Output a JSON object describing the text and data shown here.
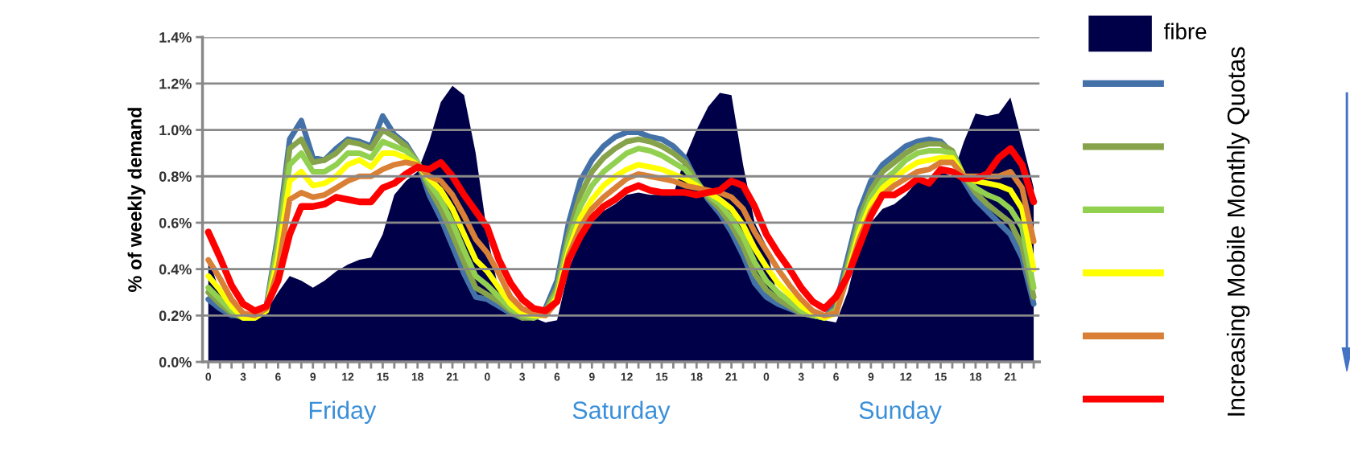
{
  "chart_data": {
    "type": "line",
    "ylabel": "% of weekly demand",
    "legend_title": "Increasing Mobile Monthly Quotas",
    "legend": "right",
    "grid": "y",
    "marker": "none",
    "line_style": "solid",
    "ylim": [
      0,
      1.4
    ],
    "yticks": [
      {
        "value": 0,
        "label": "0.0%"
      },
      {
        "value": 0.2,
        "label": "0.2%"
      },
      {
        "value": 0.4,
        "label": "0.4%"
      },
      {
        "value": 0.6,
        "label": "0.6%"
      },
      {
        "value": 0.8,
        "label": "0.8%"
      },
      {
        "value": 1.0,
        "label": "1.0%"
      },
      {
        "value": 1.2,
        "label": "1.2%"
      },
      {
        "value": 1.4,
        "label": "1.4%"
      }
    ],
    "annotations": [
      "Friday",
      "Saturday",
      "Sunday"
    ],
    "categories": [
      "0",
      null,
      null,
      "3",
      null,
      null,
      "6",
      null,
      null,
      "9",
      null,
      null,
      "12",
      null,
      null,
      "15",
      null,
      null,
      "18",
      null,
      null,
      "21",
      null,
      null,
      "0",
      null,
      null,
      "3",
      null,
      null,
      "6",
      null,
      null,
      "9",
      null,
      null,
      "12",
      null,
      null,
      "15",
      null,
      null,
      "18",
      null,
      null,
      "21",
      null,
      null,
      "0",
      null,
      null,
      "3",
      null,
      null,
      "6",
      null,
      null,
      "9",
      null,
      null,
      "12",
      null,
      null,
      "15",
      null,
      null,
      "18",
      null,
      null,
      "21",
      null,
      null
    ],
    "series": [
      {
        "name": "fibre",
        "type": "area",
        "color": "#000048",
        "values": [
          0.45,
          0.3,
          0.2,
          0.19,
          0.2,
          0.22,
          0.3,
          0.37,
          0.35,
          0.32,
          0.35,
          0.39,
          0.42,
          0.44,
          0.45,
          0.55,
          0.72,
          0.78,
          0.82,
          0.95,
          1.12,
          1.19,
          1.15,
          0.9,
          0.55,
          0.3,
          0.22,
          0.2,
          0.19,
          0.17,
          0.18,
          0.4,
          0.52,
          0.6,
          0.65,
          0.68,
          0.72,
          0.73,
          0.72,
          0.72,
          0.72,
          0.88,
          1.0,
          1.1,
          1.16,
          1.15,
          0.85,
          0.6,
          0.5,
          0.27,
          0.24,
          0.22,
          0.2,
          0.18,
          0.17,
          0.3,
          0.5,
          0.6,
          0.66,
          0.68,
          0.72,
          0.78,
          0.77,
          0.82,
          0.8,
          0.95,
          1.07,
          1.06,
          1.07,
          1.14,
          0.95,
          0.75
        ]
      },
      {
        "color": "#4472a8",
        "values": [
          0.27,
          0.23,
          0.2,
          0.2,
          0.2,
          0.24,
          0.55,
          0.96,
          1.04,
          0.88,
          0.87,
          0.92,
          0.96,
          0.95,
          0.93,
          1.06,
          0.98,
          0.94,
          0.86,
          0.72,
          0.62,
          0.5,
          0.38,
          0.28,
          0.27,
          0.24,
          0.21,
          0.19,
          0.2,
          0.23,
          0.35,
          0.6,
          0.78,
          0.87,
          0.93,
          0.97,
          0.99,
          0.99,
          0.97,
          0.96,
          0.93,
          0.88,
          0.78,
          0.7,
          0.64,
          0.56,
          0.46,
          0.34,
          0.28,
          0.25,
          0.23,
          0.21,
          0.2,
          0.19,
          0.25,
          0.45,
          0.65,
          0.78,
          0.85,
          0.89,
          0.93,
          0.95,
          0.96,
          0.95,
          0.9,
          0.78,
          0.7,
          0.65,
          0.6,
          0.55,
          0.45,
          0.25
        ]
      },
      {
        "color": "#86a24a",
        "values": [
          0.3,
          0.25,
          0.21,
          0.19,
          0.19,
          0.23,
          0.53,
          0.92,
          0.96,
          0.86,
          0.87,
          0.9,
          0.95,
          0.94,
          0.92,
          1.0,
          0.97,
          0.93,
          0.86,
          0.75,
          0.66,
          0.55,
          0.43,
          0.32,
          0.29,
          0.26,
          0.22,
          0.19,
          0.19,
          0.22,
          0.32,
          0.55,
          0.72,
          0.82,
          0.88,
          0.92,
          0.95,
          0.96,
          0.95,
          0.93,
          0.9,
          0.86,
          0.78,
          0.71,
          0.66,
          0.59,
          0.5,
          0.38,
          0.31,
          0.27,
          0.24,
          0.21,
          0.2,
          0.19,
          0.23,
          0.42,
          0.62,
          0.74,
          0.82,
          0.86,
          0.9,
          0.93,
          0.94,
          0.94,
          0.91,
          0.8,
          0.73,
          0.68,
          0.64,
          0.6,
          0.5,
          0.28
        ]
      },
      {
        "color": "#92d050",
        "values": [
          0.32,
          0.27,
          0.22,
          0.19,
          0.19,
          0.23,
          0.5,
          0.85,
          0.9,
          0.82,
          0.82,
          0.85,
          0.9,
          0.9,
          0.88,
          0.95,
          0.93,
          0.91,
          0.86,
          0.77,
          0.7,
          0.6,
          0.48,
          0.37,
          0.33,
          0.28,
          0.23,
          0.2,
          0.19,
          0.21,
          0.3,
          0.52,
          0.67,
          0.76,
          0.82,
          0.86,
          0.9,
          0.92,
          0.91,
          0.89,
          0.86,
          0.83,
          0.77,
          0.72,
          0.68,
          0.62,
          0.54,
          0.43,
          0.35,
          0.3,
          0.26,
          0.22,
          0.2,
          0.19,
          0.22,
          0.4,
          0.59,
          0.71,
          0.78,
          0.82,
          0.87,
          0.9,
          0.91,
          0.91,
          0.9,
          0.8,
          0.75,
          0.72,
          0.7,
          0.66,
          0.58,
          0.32
        ]
      },
      {
        "color": "#ffff00",
        "values": [
          0.37,
          0.31,
          0.24,
          0.19,
          0.19,
          0.22,
          0.45,
          0.78,
          0.82,
          0.76,
          0.77,
          0.8,
          0.85,
          0.87,
          0.84,
          0.9,
          0.9,
          0.88,
          0.85,
          0.79,
          0.74,
          0.66,
          0.55,
          0.44,
          0.39,
          0.32,
          0.25,
          0.21,
          0.2,
          0.2,
          0.28,
          0.48,
          0.62,
          0.7,
          0.76,
          0.8,
          0.83,
          0.85,
          0.84,
          0.83,
          0.81,
          0.79,
          0.76,
          0.73,
          0.7,
          0.66,
          0.59,
          0.49,
          0.41,
          0.34,
          0.29,
          0.24,
          0.21,
          0.19,
          0.21,
          0.38,
          0.56,
          0.68,
          0.75,
          0.79,
          0.83,
          0.86,
          0.87,
          0.88,
          0.88,
          0.8,
          0.78,
          0.77,
          0.76,
          0.74,
          0.66,
          0.4
        ]
      },
      {
        "color": "#d98036",
        "values": [
          0.44,
          0.36,
          0.27,
          0.21,
          0.2,
          0.23,
          0.4,
          0.7,
          0.73,
          0.71,
          0.72,
          0.75,
          0.78,
          0.8,
          0.8,
          0.83,
          0.85,
          0.86,
          0.85,
          0.8,
          0.78,
          0.72,
          0.63,
          0.53,
          0.47,
          0.38,
          0.28,
          0.23,
          0.21,
          0.2,
          0.26,
          0.46,
          0.58,
          0.66,
          0.71,
          0.75,
          0.79,
          0.81,
          0.8,
          0.79,
          0.78,
          0.76,
          0.75,
          0.74,
          0.73,
          0.71,
          0.66,
          0.56,
          0.48,
          0.4,
          0.33,
          0.27,
          0.22,
          0.2,
          0.21,
          0.37,
          0.53,
          0.65,
          0.72,
          0.76,
          0.79,
          0.82,
          0.83,
          0.86,
          0.86,
          0.8,
          0.8,
          0.8,
          0.8,
          0.82,
          0.75,
          0.52
        ]
      },
      {
        "color": "#ff0000",
        "values": [
          0.56,
          0.45,
          0.33,
          0.25,
          0.22,
          0.24,
          0.35,
          0.55,
          0.67,
          0.67,
          0.68,
          0.71,
          0.7,
          0.69,
          0.69,
          0.75,
          0.77,
          0.81,
          0.84,
          0.83,
          0.86,
          0.8,
          0.72,
          0.65,
          0.58,
          0.44,
          0.34,
          0.27,
          0.23,
          0.22,
          0.26,
          0.44,
          0.54,
          0.62,
          0.67,
          0.7,
          0.74,
          0.76,
          0.74,
          0.73,
          0.73,
          0.73,
          0.72,
          0.73,
          0.74,
          0.78,
          0.76,
          0.67,
          0.55,
          0.47,
          0.4,
          0.32,
          0.26,
          0.23,
          0.28,
          0.37,
          0.5,
          0.63,
          0.72,
          0.72,
          0.75,
          0.79,
          0.77,
          0.83,
          0.82,
          0.79,
          0.79,
          0.81,
          0.88,
          0.92,
          0.85,
          0.69
        ]
      }
    ]
  }
}
